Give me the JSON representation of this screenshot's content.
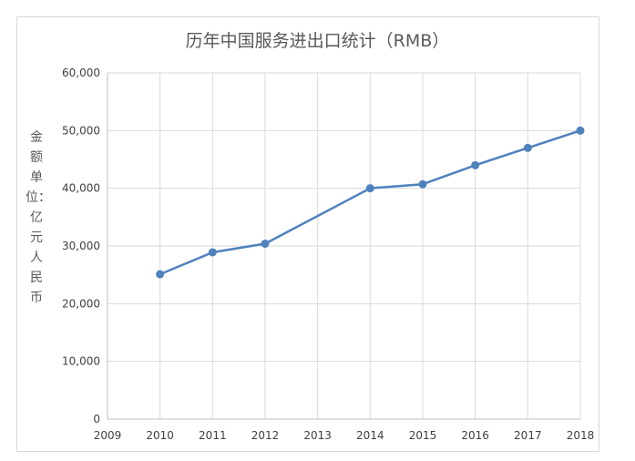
{
  "chart_data": {
    "type": "line",
    "title": "历年中国服务进出口统计（RMB）",
    "ylabel": "金额单位：亿元人民币",
    "xlabel": "",
    "x": [
      2010,
      2011,
      2012,
      2014,
      2015,
      2016,
      2017,
      2018
    ],
    "x_ticks": [
      "2009",
      "2010",
      "2011",
      "2012",
      "2013",
      "2014",
      "2015",
      "2016",
      "2017",
      "2018"
    ],
    "xlim": [
      2009,
      2018
    ],
    "y_ticks": [
      "0",
      "10,000",
      "20,000",
      "30,000",
      "40,000",
      "50,000",
      "60,000"
    ],
    "ylim": [
      0,
      60000
    ],
    "series": [
      {
        "values": [
          25100,
          28900,
          30400,
          40000,
          40700,
          44000,
          47000,
          50000
        ]
      }
    ],
    "grid": true,
    "line_color": "#4f81bd",
    "grid_color": "#d9d9d9"
  }
}
